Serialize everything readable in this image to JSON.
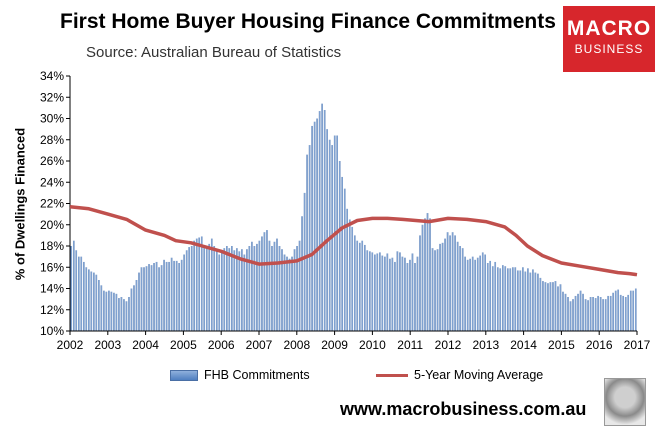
{
  "header": {
    "title": "First Home Buyer Housing Finance Commitments",
    "subtitle": "Source: Australian Bureau of Statistics"
  },
  "logo": {
    "line1": "MACRO",
    "line2": "BUSINESS",
    "color": "#d7262c"
  },
  "footer": {
    "url": "www.macrobusiness.com.au",
    "mascot_icon": "wolf-icon"
  },
  "chart_data": {
    "type": "bar",
    "ylabel": "% of Dwellings Financed",
    "ylim": [
      10,
      34
    ],
    "yticks": [
      "10%",
      "12%",
      "14%",
      "16%",
      "18%",
      "20%",
      "22%",
      "24%",
      "26%",
      "28%",
      "30%",
      "32%",
      "34%"
    ],
    "xticks": [
      "2002",
      "2003",
      "2004",
      "2005",
      "2006",
      "2007",
      "2008",
      "2009",
      "2010",
      "2011",
      "2012",
      "2013",
      "2014",
      "2015",
      "2016",
      "2017"
    ],
    "grid": false,
    "legend_position": "bottom",
    "x_start": "2002-01",
    "x_end": "2017-01",
    "series": [
      {
        "name": "FHB Commitments",
        "type": "bar",
        "color": "#5b86c5",
        "values": [
          18.0,
          18.5,
          17.6,
          17.0,
          17.0,
          16.5,
          16.0,
          15.8,
          15.6,
          15.5,
          15.3,
          14.8,
          14.3,
          13.8,
          13.7,
          13.8,
          13.7,
          13.6,
          13.5,
          13.1,
          13.2,
          13.0,
          12.8,
          13.2,
          14.0,
          14.3,
          14.8,
          15.5,
          16.0,
          16.0,
          16.1,
          16.3,
          16.2,
          16.4,
          16.5,
          16.0,
          16.2,
          16.7,
          16.5,
          16.5,
          16.9,
          16.6,
          16.6,
          16.4,
          16.7,
          17.2,
          17.6,
          17.9,
          18.0,
          18.5,
          18.7,
          18.8,
          18.9,
          18.0,
          18.0,
          18.2,
          18.7,
          18.0,
          17.5,
          17.2,
          17.5,
          17.8,
          18.0,
          17.8,
          18.0,
          17.6,
          17.8,
          17.5,
          17.7,
          17.2,
          17.7,
          18.0,
          18.4,
          18.0,
          18.2,
          18.5,
          18.9,
          19.3,
          19.5,
          18.5,
          18.0,
          18.4,
          18.7,
          18.0,
          17.7,
          17.2,
          17.0,
          16.8,
          17.0,
          17.7,
          18.0,
          18.5,
          20.8,
          23.0,
          26.6,
          27.5,
          29.3,
          29.7,
          30.0,
          30.7,
          31.4,
          30.8,
          29.0,
          28.0,
          27.5,
          28.4,
          28.4,
          26.0,
          24.5,
          23.4,
          21.5,
          20.5,
          19.8,
          19.0,
          18.5,
          18.3,
          18.5,
          18.1,
          17.6,
          17.5,
          17.4,
          17.2,
          17.3,
          17.4,
          17.1,
          17.0,
          17.3,
          16.8,
          16.9,
          16.5,
          17.5,
          17.4,
          17.0,
          16.9,
          16.4,
          16.7,
          17.3,
          16.4,
          17.0,
          19.0,
          20.0,
          20.6,
          21.1,
          20.6,
          17.8,
          17.6,
          17.7,
          18.2,
          18.3,
          18.7,
          19.3,
          19.0,
          19.3,
          19.0,
          18.4,
          18.0,
          17.8,
          17.0,
          16.7,
          16.8,
          17.0,
          16.7,
          16.9,
          17.1,
          17.4,
          17.2,
          16.4,
          16.6,
          16.1,
          16.5,
          16.0,
          15.9,
          16.2,
          16.1,
          15.9,
          15.9,
          16.0,
          16.0,
          15.7,
          15.7,
          16.0,
          15.6,
          15.9,
          15.5,
          15.8,
          15.5,
          15.4,
          15.0,
          14.7,
          14.6,
          14.5,
          14.6,
          14.6,
          14.7,
          14.2,
          14.4,
          13.7,
          13.5,
          13.2,
          12.8,
          13.0,
          13.3,
          13.5,
          13.8,
          13.5,
          13.0,
          12.9,
          13.2,
          13.2,
          13.1,
          13.3,
          13.2,
          13.0,
          13.0,
          13.3,
          13.3,
          13.6,
          13.8,
          13.9,
          13.4,
          13.3,
          13.2,
          13.4,
          13.8,
          13.8,
          14.0
        ]
      },
      {
        "name": "5-Year Moving Average",
        "type": "line",
        "color": "#c0504d",
        "points": [
          [
            2002.0,
            21.7
          ],
          [
            2002.5,
            21.5
          ],
          [
            2003.0,
            21.0
          ],
          [
            2003.5,
            20.5
          ],
          [
            2004.0,
            19.5
          ],
          [
            2004.5,
            19.0
          ],
          [
            2004.8,
            18.5
          ],
          [
            2005.2,
            18.3
          ],
          [
            2005.5,
            18.0
          ],
          [
            2006.0,
            17.5
          ],
          [
            2006.5,
            16.8
          ],
          [
            2007.0,
            16.3
          ],
          [
            2007.5,
            16.4
          ],
          [
            2008.0,
            16.6
          ],
          [
            2008.4,
            17.2
          ],
          [
            2008.8,
            18.5
          ],
          [
            2009.2,
            19.7
          ],
          [
            2009.6,
            20.4
          ],
          [
            2010.0,
            20.6
          ],
          [
            2010.4,
            20.6
          ],
          [
            2010.8,
            20.5
          ],
          [
            2011.5,
            20.3
          ],
          [
            2012.0,
            20.6
          ],
          [
            2012.5,
            20.5
          ],
          [
            2013.0,
            20.3
          ],
          [
            2013.5,
            19.8
          ],
          [
            2013.8,
            19.0
          ],
          [
            2014.1,
            18.0
          ],
          [
            2014.5,
            17.1
          ],
          [
            2015.0,
            16.4
          ],
          [
            2015.5,
            16.1
          ],
          [
            2016.0,
            15.8
          ],
          [
            2016.5,
            15.5
          ],
          [
            2016.8,
            15.4
          ],
          [
            2017.0,
            15.3
          ]
        ]
      }
    ]
  }
}
